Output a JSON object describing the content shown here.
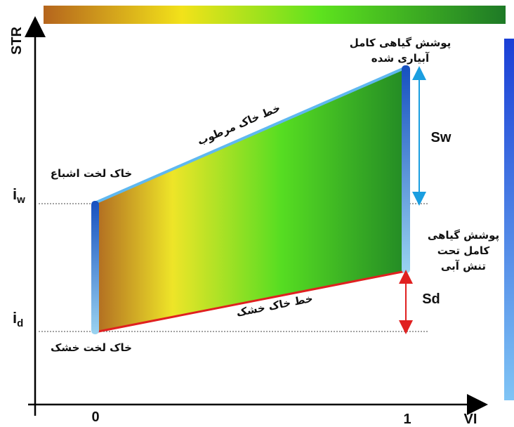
{
  "axes": {
    "y_label": "STR",
    "x_label": "VI",
    "x_ticks": [
      "0",
      "1"
    ],
    "y_labels": [
      {
        "base": "i",
        "sub": "w"
      },
      {
        "base": "i",
        "sub": "d"
      }
    ]
  },
  "annotations": {
    "sw": "Sw",
    "sd": "Sd",
    "wet_edge": "خط خاک مرطوب",
    "dry_edge": "خط خاک خشک",
    "saturated_bare_soil": "خاک لخت اشباع",
    "dry_bare_soil": "خاک لخت خشک",
    "full_vegetation_irrigated": [
      "پوشش گیاهی کامل",
      "آبیاری شده"
    ],
    "full_vegetation_stressed": [
      "پوشش گیاهی",
      "کامل تحت",
      "تنش آبی"
    ]
  }
}
